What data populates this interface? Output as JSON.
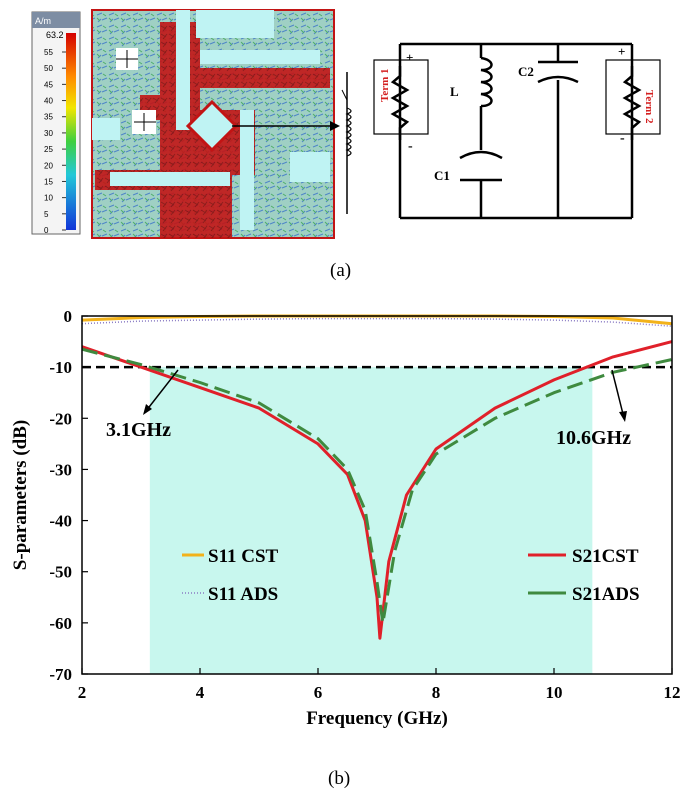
{
  "panel_a": {
    "label": "(a)",
    "colorbar": {
      "unit": "A/m",
      "max_label": "63.2",
      "ticks": [
        "55",
        "50",
        "45",
        "40",
        "35",
        "30",
        "25",
        "20",
        "15",
        "10",
        "5",
        "0"
      ]
    },
    "circuit": {
      "term1": "Term 1",
      "term2": "Term 2",
      "inductor": "L",
      "capacitor1": "C1",
      "capacitor2": "C2",
      "plus": "+",
      "minus": "-"
    },
    "colors": {
      "field_red": "#c21414",
      "field_green": "#4fae6a",
      "field_blue": "#4f86c8",
      "slot_cyan": "#bff3f3"
    }
  },
  "panel_b": {
    "label": "(b)",
    "annotations": {
      "low": "3.1GHz",
      "high": "10.6GHz"
    },
    "legend": {
      "s11_cst": "S11 CST",
      "s11_ads": "S11 ADS",
      "s21_cst": "S21CST",
      "s21_ads": "S21ADS"
    }
  },
  "chart_data": {
    "type": "line",
    "xlabel": "Frequency (GHz)",
    "ylabel": "S-parameters (dB)",
    "xlim": [
      2,
      12
    ],
    "ylim": [
      -70,
      0
    ],
    "x_ticks": [
      "2",
      "4",
      "6",
      "8",
      "10",
      "12"
    ],
    "y_ticks": [
      "0",
      "-10",
      "-20",
      "-30",
      "-40",
      "-50",
      "-60",
      "-70"
    ],
    "threshold_db": -10,
    "band_ghz": [
      3.15,
      10.65
    ],
    "colors": {
      "s11_cst": "#f2b21a",
      "s11_ads": "#8a7bc4",
      "s21_cst": "#e0202a",
      "s21_ads": "#3f8a3f",
      "band": "#c8f7ee",
      "threshold": "#000000"
    },
    "series": [
      {
        "name": "S11 CST",
        "key": "s11_cst",
        "x": [
          2,
          3,
          4,
          5,
          6,
          7,
          8,
          9,
          10,
          11,
          12
        ],
        "y": [
          -0.8,
          -0.3,
          -0.1,
          0,
          0,
          0,
          0,
          0,
          -0.1,
          -0.4,
          -1.5
        ]
      },
      {
        "name": "S11 ADS",
        "key": "s11_ads",
        "x": [
          2,
          3,
          4,
          5,
          6,
          7,
          8,
          9,
          10,
          11,
          12
        ],
        "y": [
          -1.5,
          -1.0,
          -0.8,
          -0.6,
          -0.5,
          -0.5,
          -0.5,
          -0.6,
          -0.8,
          -1.2,
          -2.0
        ]
      },
      {
        "name": "S21CST",
        "key": "s21_cst",
        "x": [
          2,
          3,
          4,
          5,
          6,
          6.5,
          6.8,
          7.0,
          7.05,
          7.2,
          7.5,
          8,
          9,
          10,
          11,
          12
        ],
        "y": [
          -6,
          -10,
          -14,
          -18,
          -25,
          -31,
          -40,
          -55,
          -63,
          -48,
          -35,
          -26,
          -18,
          -12.5,
          -8,
          -5
        ]
      },
      {
        "name": "S21ADS",
        "key": "s21_ads",
        "x": [
          2,
          3,
          4,
          5,
          6,
          6.5,
          6.8,
          7.0,
          7.1,
          7.3,
          7.6,
          8,
          9,
          10,
          11,
          12
        ],
        "y": [
          -6.5,
          -9.5,
          -13,
          -17,
          -24,
          -30,
          -38,
          -52,
          -60,
          -46,
          -34,
          -27,
          -20,
          -15,
          -11,
          -8.5
        ]
      }
    ]
  }
}
